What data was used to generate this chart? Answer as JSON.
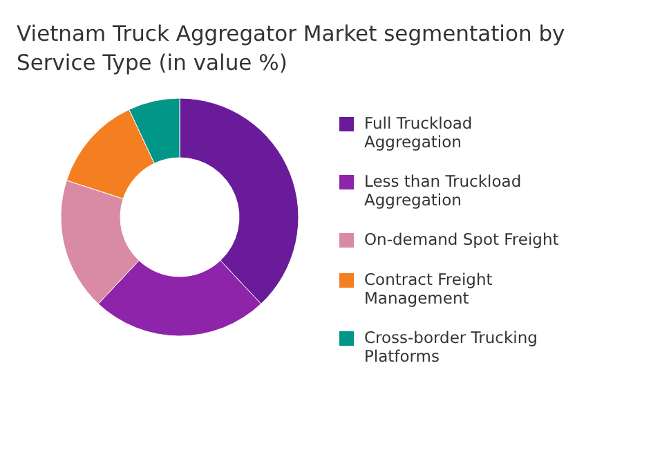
{
  "chart_data": {
    "type": "donut",
    "title": "Vietnam Truck Aggregator Market segmentation by Service Type (in value %)",
    "categories": [
      "Full Truckload Aggregation",
      "Less than Truckload Aggregation",
      "On-demand Spot Freight",
      "Contract Freight Management",
      "Cross-border Trucking Platforms"
    ],
    "values": [
      38,
      24,
      18,
      13,
      7
    ],
    "colors": [
      "#6a1b9a",
      "#8e24aa",
      "#d98aa5",
      "#f47f20",
      "#009688"
    ],
    "legend": "right"
  }
}
